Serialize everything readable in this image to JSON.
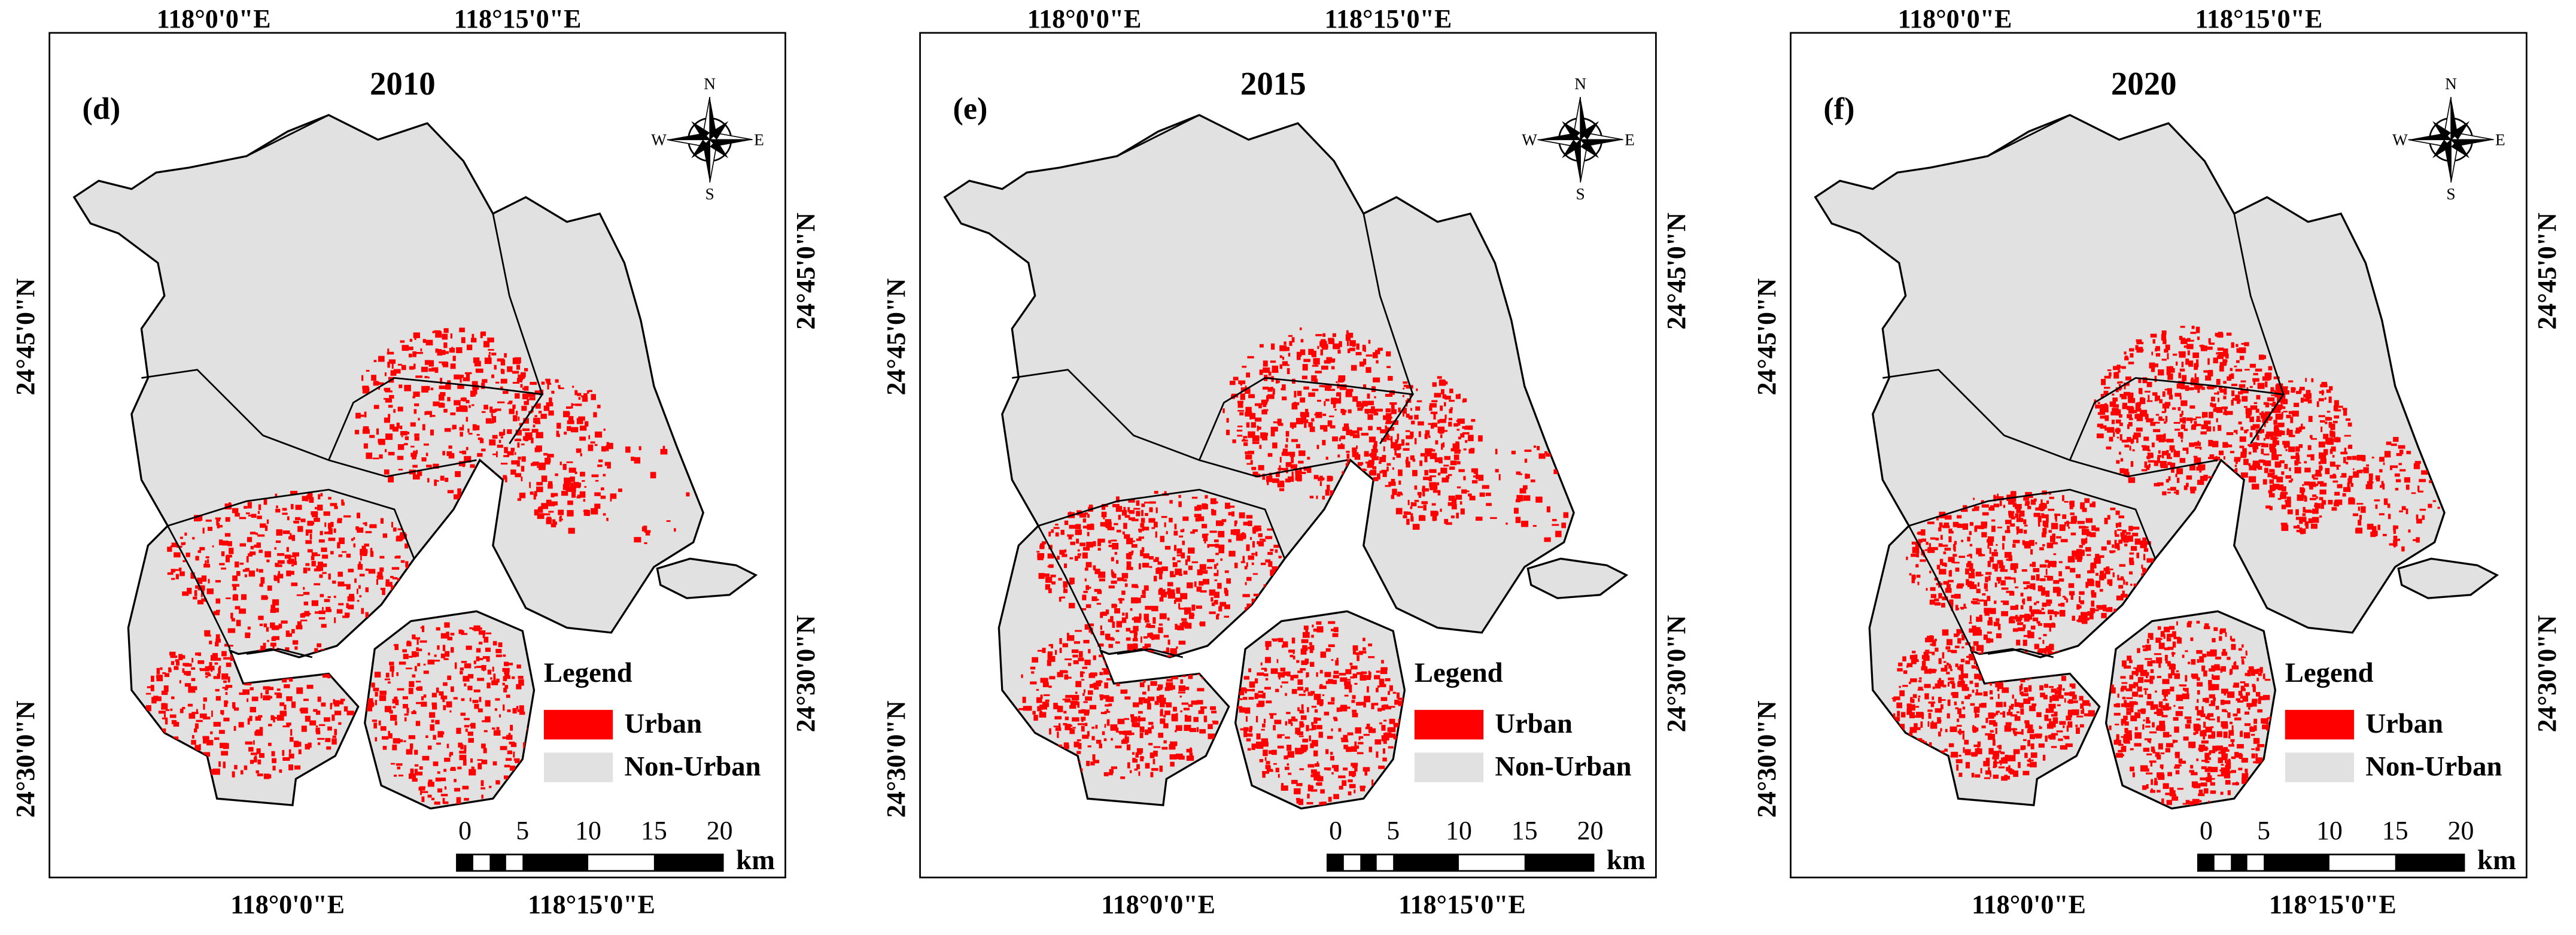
{
  "panels": [
    {
      "label": "(d)",
      "year": "2010",
      "top_ticks": [
        "118°0'0\"E",
        "118°15'0\"E"
      ],
      "bottom_ticks": [
        "118°0'0\"E",
        "118°15'0\"E"
      ],
      "left_ticks": [
        "24°45'0\"N",
        "24°30'0\"N"
      ],
      "right_ticks": [
        "24°45'0\"N",
        "24°30'0\"N"
      ]
    },
    {
      "label": "(e)",
      "year": "2015",
      "top_ticks": [
        "118°0'0\"E",
        "118°15'0\"E"
      ],
      "bottom_ticks": [
        "118°0'0\"E",
        "118°15'0\"E"
      ],
      "left_ticks": [
        "24°45'0\"N",
        "24°30'0\"N"
      ],
      "right_ticks": [
        "24°45'0\"N",
        "24°30'0\"N"
      ]
    },
    {
      "label": "(f)",
      "year": "2020",
      "top_ticks": [
        "118°0'0\"E",
        "118°15'0\"E"
      ],
      "bottom_ticks": [
        "118°0'0\"E",
        "118°15'0\"E"
      ],
      "left_ticks": [
        "24°45'0\"N",
        "24°30'0\"N"
      ],
      "right_ticks": [
        "24°45'0\"N",
        "24°30'0\"N"
      ]
    }
  ],
  "compass": {
    "n": "N",
    "s": "S",
    "e": "E",
    "w": "W"
  },
  "legend": {
    "title": "Legend",
    "items": [
      {
        "label": "Urban",
        "color": "#ff0000"
      },
      {
        "label": "Non-Urban",
        "color": "#e1e1e1"
      }
    ]
  },
  "scale_bar": {
    "ticks": [
      0,
      5,
      10,
      15,
      20
    ],
    "unit": "km"
  }
}
